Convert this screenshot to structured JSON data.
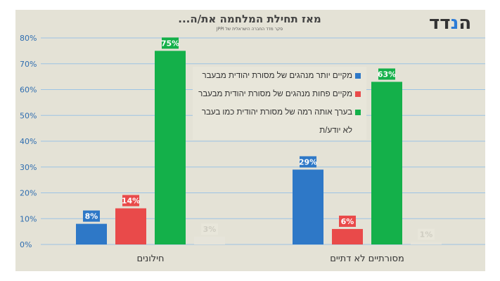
{
  "logo": "הנדד",
  "title": "מאז תחילת המלחמה את/ה...",
  "subtitle": "סקר מדד החברה הישראלית של JPPI",
  "chart_data": {
    "type": "bar",
    "categories": [
      "חילונים",
      "מסורתיים לא דתיים"
    ],
    "series": [
      {
        "name": "מקיים יותר מנהגים של מסורת יהודית מבעבר",
        "color": "#2e78c7",
        "values": [
          8,
          29
        ]
      },
      {
        "name": "מקיים פחות מנהגים של מסורת יהודית מבעבר",
        "color": "#e94a4a",
        "values": [
          14,
          6
        ]
      },
      {
        "name": "בערך אותה רמה של מסורת יהודית כמו בעבר",
        "color": "#14b04a",
        "values": [
          75,
          63
        ]
      },
      {
        "name": "לא יודע/ת",
        "color": "#e6e4da",
        "values": [
          3,
          1
        ]
      }
    ],
    "yticks": [
      "0%",
      "10%",
      "20%",
      "30%",
      "40%",
      "50%",
      "60%",
      "70%",
      "80%"
    ],
    "ylim": [
      0,
      80
    ],
    "grid": true,
    "legend": "center"
  }
}
